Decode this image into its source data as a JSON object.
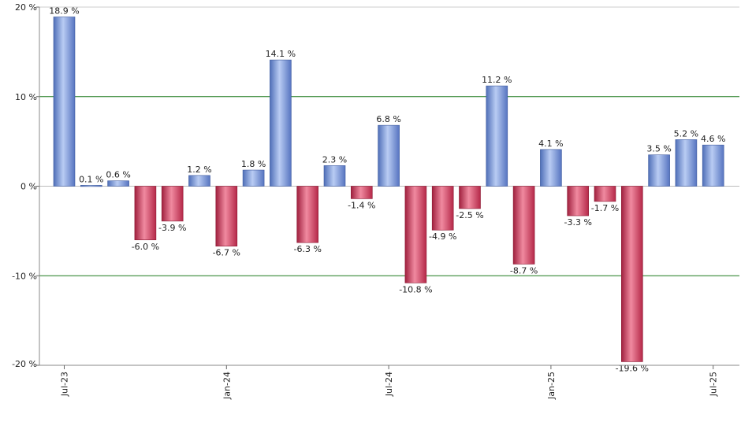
{
  "chart_data": {
    "type": "bar",
    "title": "",
    "xlabel": "",
    "ylabel": "",
    "ylim": [
      -20,
      20
    ],
    "grid": "horizontal at major ticks",
    "colors": {
      "positive": "#6f8fd6",
      "negative": "#c8385a",
      "gridline": "#1f7a1f",
      "zero_line": "#bbbbbb"
    },
    "y_ticks": [
      {
        "value": 20,
        "label": "20 %"
      },
      {
        "value": 10,
        "label": "10 %"
      },
      {
        "value": 0,
        "label": "0 %"
      },
      {
        "value": -10,
        "label": "-10 %"
      },
      {
        "value": -20,
        "label": "-20 %"
      }
    ],
    "x_ticks": [
      {
        "index": 0,
        "label": "Jul-23"
      },
      {
        "index": 6,
        "label": "Jan-24"
      },
      {
        "index": 12,
        "label": "Jul-24"
      },
      {
        "index": 18,
        "label": "Jan-25"
      },
      {
        "index": 24,
        "label": "Jul-25"
      }
    ],
    "values": [
      18.9,
      0.1,
      0.6,
      -6.0,
      -3.9,
      1.2,
      -6.7,
      1.8,
      14.1,
      -6.3,
      2.3,
      -1.4,
      6.8,
      -10.8,
      -4.9,
      -2.5,
      11.2,
      -8.7,
      4.1,
      -3.3,
      -1.7,
      -19.6,
      3.5,
      5.2,
      4.6
    ],
    "value_labels": [
      "18.9 %",
      "0.1 %",
      "0.6 %",
      "-6.0 %",
      "-3.9 %",
      "1.2 %",
      "-6.7 %",
      "1.8 %",
      "14.1 %",
      "-6.3 %",
      "2.3 %",
      "-1.4 %",
      "6.8 %",
      "-10.8 %",
      "-4.9 %",
      "-2.5 %",
      "11.2 %",
      "-8.7 %",
      "4.1 %",
      "-3.3 %",
      "-1.7 %",
      "-19.6 %",
      "3.5 %",
      "5.2 %",
      "4.6 %"
    ]
  }
}
